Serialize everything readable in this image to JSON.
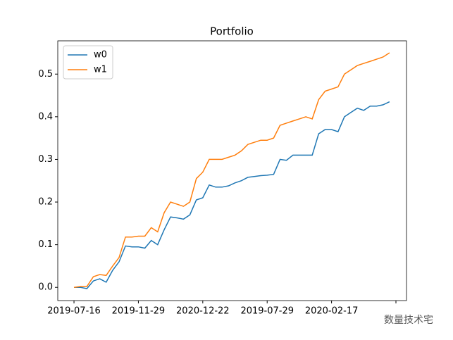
{
  "chart_data": {
    "type": "line",
    "title": "Portfolio",
    "x": [
      0,
      5,
      10,
      15,
      20,
      25,
      30,
      35,
      40,
      45,
      50,
      55,
      60,
      65,
      70,
      75,
      80,
      85,
      90,
      95,
      100,
      105,
      110,
      115,
      120,
      125,
      130,
      135,
      140,
      145,
      150,
      155,
      160,
      165,
      170,
      175,
      180,
      185,
      190,
      195,
      200,
      205,
      210,
      215,
      220,
      225,
      230,
      235,
      240,
      245
    ],
    "series": [
      {
        "name": "w0",
        "color": "#1f77b4",
        "values": [
          0.0,
          0.0,
          -0.003,
          0.015,
          0.02,
          0.012,
          0.04,
          0.06,
          0.097,
          0.095,
          0.095,
          0.092,
          0.11,
          0.1,
          0.135,
          0.165,
          0.163,
          0.16,
          0.17,
          0.205,
          0.21,
          0.24,
          0.235,
          0.235,
          0.238,
          0.245,
          0.25,
          0.258,
          0.26,
          0.262,
          0.263,
          0.265,
          0.3,
          0.298,
          0.31,
          0.31,
          0.31,
          0.31,
          0.36,
          0.37,
          0.37,
          0.365,
          0.4,
          0.41,
          0.42,
          0.415,
          0.425,
          0.425,
          0.428,
          0.435
        ]
      },
      {
        "name": "w1",
        "color": "#ff7f0e",
        "values": [
          0.0,
          0.002,
          0.002,
          0.025,
          0.03,
          0.028,
          0.05,
          0.07,
          0.118,
          0.118,
          0.12,
          0.12,
          0.14,
          0.13,
          0.175,
          0.2,
          0.195,
          0.19,
          0.2,
          0.255,
          0.27,
          0.3,
          0.3,
          0.3,
          0.305,
          0.31,
          0.32,
          0.335,
          0.34,
          0.345,
          0.345,
          0.35,
          0.38,
          0.385,
          0.39,
          0.395,
          0.4,
          0.395,
          0.44,
          0.46,
          0.465,
          0.47,
          0.5,
          0.51,
          0.52,
          0.525,
          0.53,
          0.535,
          0.54,
          0.55
        ]
      }
    ],
    "xlim": [
      -12.6,
      258.2
    ],
    "ylim": [
      -0.031,
      0.578
    ],
    "xticks": [
      {
        "value": 0,
        "label": "2019-07-16"
      },
      {
        "value": 50,
        "label": "2019-11-29"
      },
      {
        "value": 100,
        "label": "2020-12-22"
      },
      {
        "value": 150,
        "label": "2019-07-29"
      },
      {
        "value": 200,
        "label": "2020-02-17"
      },
      {
        "value": 250,
        "label": null
      }
    ],
    "yticks": [
      {
        "value": 0,
        "label": "0.0"
      },
      0.1,
      0.2,
      0.3,
      0.4,
      0.5
    ],
    "legend": "upper left",
    "grid": false
  },
  "watermark": "数量技术宅"
}
